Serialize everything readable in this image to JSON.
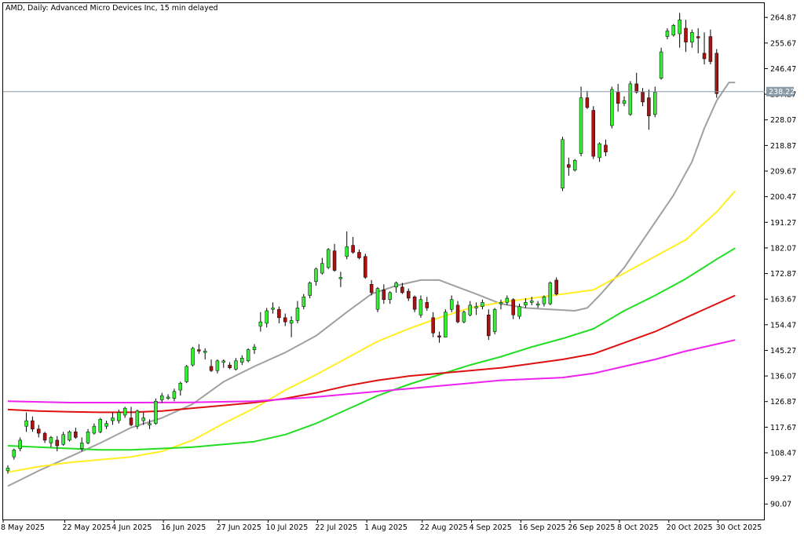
{
  "header": {
    "symbol_line": "AMD, Daily:  Advanced Micro Devices Inc, 15 min delayed"
  },
  "current_price": {
    "label": "238.22",
    "value": 238.22,
    "line_color": "#8a9aa6",
    "tag_color": "#8a9aa6"
  },
  "colors": {
    "bull_candle": "#33ee33",
    "bear_candle": "#aa1111",
    "wick": "#000000",
    "ma_grey": "#a0a0a0",
    "ma_yellow": "#ffee22",
    "ma_green": "#22dd22",
    "ma_red": "#dd1111",
    "ma_magenta": "#ee22ee"
  },
  "chart_data": {
    "type": "candlestick",
    "title": "AMD, Daily:  Advanced Micro Devices Inc, 15 min delayed",
    "ylim": [
      84.5,
      270
    ],
    "y_ticks": [
      "264.87",
      "255.67",
      "246.47",
      "237.27",
      "228.07",
      "218.87",
      "209.67",
      "200.47",
      "191.27",
      "182.07",
      "172.87",
      "163.67",
      "154.47",
      "145.27",
      "136.07",
      "126.87",
      "117.67",
      "108.47",
      "99.27",
      "90.07"
    ],
    "y_tick_values": [
      264.87,
      255.67,
      246.47,
      237.27,
      228.07,
      218.87,
      209.67,
      200.47,
      191.27,
      182.07,
      172.87,
      163.67,
      154.47,
      145.27,
      136.07,
      126.87,
      117.67,
      108.47,
      99.27,
      90.07
    ],
    "x_ticks": [
      {
        "label": "8 May 2025",
        "index": 0
      },
      {
        "label": "22 May 2025",
        "index": 10
      },
      {
        "label": "4 Jun 2025",
        "index": 18
      },
      {
        "label": "16 Jun 2025",
        "index": 26
      },
      {
        "label": "27 Jun 2025",
        "index": 35
      },
      {
        "label": "10 Jul 2025",
        "index": 43
      },
      {
        "label": "22 Jul 2025",
        "index": 51
      },
      {
        "label": "1 Aug 2025",
        "index": 59
      },
      {
        "label": "22 Aug 2025",
        "index": 68
      },
      {
        "label": "4 Sep 2025",
        "index": 76
      },
      {
        "label": "16 Sep 2025",
        "index": 84
      },
      {
        "label": "26 Sep 2025",
        "index": 92
      },
      {
        "label": "8 Oct 2025",
        "index": 100
      },
      {
        "label": "20 Oct 2025",
        "index": 108
      },
      {
        "label": "30 Oct 2025",
        "index": 116
      }
    ],
    "candles": [
      [
        102.0,
        104.0,
        101.0,
        103.0
      ],
      [
        107.0,
        110.0,
        106.0,
        109.5
      ],
      [
        110.0,
        114.0,
        109.0,
        113.0
      ],
      [
        118.0,
        123.0,
        116.0,
        120.0
      ],
      [
        120.0,
        121.5,
        116.0,
        117.0
      ],
      [
        117.0,
        118.5,
        114.0,
        115.5
      ],
      [
        115.5,
        116.0,
        112.0,
        113.0
      ],
      [
        112.0,
        114.5,
        110.5,
        114.0
      ],
      [
        113.0,
        114.5,
        109.0,
        111.0
      ],
      [
        111.5,
        116.0,
        111.0,
        115.0
      ],
      [
        113.0,
        116.5,
        112.5,
        116.0
      ],
      [
        116.0,
        117.5,
        113.5,
        114.0
      ],
      [
        110.0,
        114.0,
        109.0,
        112.0
      ],
      [
        112.0,
        117.0,
        111.5,
        116.0
      ],
      [
        115.5,
        119.0,
        115.0,
        118.0
      ],
      [
        116.0,
        121.0,
        115.5,
        120.5
      ],
      [
        118.0,
        120.0,
        117.0,
        119.0
      ],
      [
        120.0,
        123.0,
        118.5,
        121.0
      ],
      [
        120.0,
        124.0,
        119.0,
        123.0
      ],
      [
        122.0,
        125.0,
        121.0,
        124.5
      ],
      [
        121.0,
        125.0,
        118.0,
        118.5
      ],
      [
        118.0,
        124.0,
        117.0,
        123.5
      ],
      [
        120.0,
        123.0,
        118.5,
        121.0
      ],
      [
        118.5,
        120.5,
        117.0,
        119.0
      ],
      [
        119.0,
        128.0,
        118.5,
        127.0
      ],
      [
        127.5,
        130.0,
        126.5,
        129.0
      ],
      [
        128.0,
        129.5,
        127.5,
        128.5
      ],
      [
        128.0,
        131.5,
        127.0,
        130.5
      ],
      [
        131.0,
        134.0,
        129.0,
        133.5
      ],
      [
        134.0,
        140.0,
        133.5,
        139.5
      ],
      [
        140.0,
        146.5,
        139.5,
        146.0
      ],
      [
        145.5,
        147.5,
        144.0,
        145.0
      ],
      [
        144.5,
        146.0,
        142.0,
        145.0
      ],
      [
        139.5,
        142.0,
        137.5,
        138.0
      ],
      [
        138.0,
        142.0,
        137.0,
        141.5
      ],
      [
        141.0,
        142.0,
        139.0,
        141.5
      ],
      [
        140.0,
        141.0,
        138.5,
        139.0
      ],
      [
        138.5,
        142.5,
        138.0,
        141.5
      ],
      [
        141.0,
        143.5,
        140.0,
        142.5
      ],
      [
        141.5,
        146.0,
        141.0,
        145.5
      ],
      [
        145.5,
        147.5,
        144.0,
        146.5
      ],
      [
        154.0,
        159.0,
        152.0,
        155.5
      ],
      [
        155.0,
        160.5,
        153.5,
        159.5
      ],
      [
        160.0,
        162.5,
        158.5,
        160.5
      ],
      [
        160.0,
        161.0,
        155.0,
        157.0
      ],
      [
        157.0,
        158.5,
        154.0,
        155.5
      ],
      [
        155.0,
        157.5,
        150.0,
        156.0
      ],
      [
        156.0,
        163.0,
        155.0,
        160.5
      ],
      [
        161.0,
        165.5,
        160.0,
        164.5
      ],
      [
        165.0,
        170.0,
        164.0,
        169.5
      ],
      [
        170.0,
        175.0,
        168.5,
        174.5
      ],
      [
        173.0,
        178.5,
        172.5,
        176.5
      ],
      [
        175.0,
        182.0,
        174.5,
        181.5
      ],
      [
        181.0,
        183.5,
        173.5,
        174.0
      ],
      [
        171.0,
        173.5,
        168.0,
        171.5
      ],
      [
        179.0,
        188.0,
        178.0,
        182.5
      ],
      [
        183.0,
        186.0,
        180.0,
        180.5
      ],
      [
        180.5,
        181.5,
        178.0,
        178.5
      ],
      [
        179.0,
        180.0,
        171.0,
        171.5
      ],
      [
        169.0,
        170.5,
        165.0,
        166.0
      ],
      [
        160.0,
        168.0,
        159.0,
        167.5
      ],
      [
        167.0,
        169.0,
        162.0,
        163.5
      ],
      [
        163.5,
        166.5,
        162.0,
        166.0
      ],
      [
        168.0,
        170.0,
        166.0,
        169.5
      ],
      [
        168.0,
        169.5,
        165.5,
        166.0
      ],
      [
        166.5,
        167.5,
        163.0,
        164.0
      ],
      [
        164.5,
        165.0,
        159.0,
        160.0
      ],
      [
        158.0,
        165.0,
        157.0,
        163.5
      ],
      [
        162.5,
        164.5,
        159.5,
        160.5
      ],
      [
        157.0,
        159.0,
        150.0,
        151.5
      ],
      [
        150.5,
        152.0,
        148.0,
        150.0
      ],
      [
        150.0,
        160.0,
        150.0,
        159.0
      ],
      [
        160.0,
        165.0,
        159.0,
        163.5
      ],
      [
        161.5,
        163.0,
        155.0,
        155.5
      ],
      [
        155.5,
        159.5,
        155.0,
        159.0
      ],
      [
        158.0,
        163.0,
        157.5,
        161.5
      ],
      [
        160.5,
        162.5,
        158.0,
        161.0
      ],
      [
        161.0,
        163.5,
        160.0,
        162.5
      ],
      [
        158.0,
        160.0,
        149.0,
        150.5
      ],
      [
        152.0,
        160.5,
        151.0,
        160.0
      ],
      [
        162.0,
        163.5,
        160.0,
        162.5
      ],
      [
        162.5,
        165.0,
        161.5,
        164.0
      ],
      [
        163.5,
        164.0,
        156.5,
        158.0
      ],
      [
        157.5,
        162.0,
        156.5,
        161.0
      ],
      [
        161.5,
        164.0,
        160.5,
        162.5
      ],
      [
        162.5,
        164.5,
        161.5,
        163.0
      ],
      [
        161.5,
        163.0,
        160.5,
        162.0
      ],
      [
        162.0,
        165.0,
        161.0,
        164.5
      ],
      [
        162.0,
        170.0,
        161.5,
        169.5
      ],
      [
        170.5,
        171.5,
        165.0,
        165.5
      ],
      [
        203.5,
        222.0,
        202.5,
        221.0
      ],
      [
        212.0,
        214.5,
        208.0,
        211.0
      ],
      [
        210.0,
        214.0,
        209.5,
        213.5
      ],
      [
        216.0,
        240.0,
        215.0,
        236.0
      ],
      [
        236.0,
        238.5,
        232.0,
        232.5
      ],
      [
        231.5,
        233.0,
        214.0,
        215.0
      ],
      [
        214.5,
        220.0,
        213.0,
        219.5
      ],
      [
        219.0,
        221.0,
        215.0,
        216.5
      ],
      [
        226.0,
        240.0,
        225.0,
        239.0
      ],
      [
        238.0,
        241.0,
        231.0,
        234.0
      ],
      [
        234.0,
        236.5,
        233.0,
        235.0
      ],
      [
        230.0,
        242.0,
        229.5,
        241.0
      ],
      [
        241.0,
        245.0,
        237.5,
        238.0
      ],
      [
        238.0,
        239.5,
        233.0,
        234.5
      ],
      [
        236.0,
        239.0,
        224.5,
        229.5
      ],
      [
        230.0,
        240.0,
        229.0,
        238.0
      ],
      [
        243.0,
        254.0,
        242.5,
        252.5
      ],
      [
        258.0,
        261.0,
        257.0,
        260.0
      ],
      [
        258.5,
        262.5,
        258.0,
        262.0
      ],
      [
        259.0,
        266.5,
        254.0,
        264.0
      ],
      [
        261.0,
        264.0,
        252.5,
        256.0
      ],
      [
        256.0,
        260.5,
        254.0,
        259.5
      ],
      [
        258.0,
        261.0,
        252.0,
        257.5
      ],
      [
        252.0,
        259.5,
        248.0,
        250.0
      ],
      [
        258.0,
        260.5,
        248.0,
        249.0
      ],
      [
        252.0,
        253.5,
        236.0,
        237.5
      ]
    ],
    "moving_averages": [
      {
        "color_key": "ma_grey",
        "points": [
          [
            0,
            96.5
          ],
          [
            5,
            102
          ],
          [
            10,
            107
          ],
          [
            15,
            112
          ],
          [
            20,
            117.5
          ],
          [
            25,
            121
          ],
          [
            30,
            126
          ],
          [
            35,
            134
          ],
          [
            40,
            139.5
          ],
          [
            45,
            144.5
          ],
          [
            50,
            150.5
          ],
          [
            55,
            159
          ],
          [
            59,
            165.5
          ],
          [
            63,
            168.5
          ],
          [
            67,
            170.5
          ],
          [
            70,
            170.5
          ],
          [
            73,
            168
          ],
          [
            76,
            165.5
          ],
          [
            80,
            162
          ],
          [
            84,
            160.5
          ],
          [
            88,
            160
          ],
          [
            92,
            159.5
          ],
          [
            94,
            160.5
          ],
          [
            96,
            165
          ],
          [
            98,
            170
          ],
          [
            100,
            175
          ],
          [
            104,
            188
          ],
          [
            108,
            201
          ],
          [
            111,
            213
          ],
          [
            113,
            225
          ],
          [
            115,
            235
          ],
          [
            117,
            241.5
          ],
          [
            118,
            241.5
          ]
        ]
      },
      {
        "color_key": "ma_yellow",
        "points": [
          [
            0,
            101.5
          ],
          [
            5,
            103.5
          ],
          [
            10,
            105
          ],
          [
            15,
            106
          ],
          [
            20,
            107
          ],
          [
            25,
            109
          ],
          [
            30,
            113
          ],
          [
            35,
            119
          ],
          [
            40,
            124.5
          ],
          [
            45,
            131
          ],
          [
            50,
            136.5
          ],
          [
            55,
            142.5
          ],
          [
            60,
            148.5
          ],
          [
            65,
            153
          ],
          [
            70,
            157
          ],
          [
            75,
            160.5
          ],
          [
            80,
            162.5
          ],
          [
            85,
            164
          ],
          [
            90,
            165.5
          ],
          [
            95,
            167
          ],
          [
            100,
            173
          ],
          [
            105,
            179
          ],
          [
            110,
            185
          ],
          [
            115,
            195
          ],
          [
            118,
            202.5
          ]
        ]
      },
      {
        "color_key": "ma_green",
        "points": [
          [
            0,
            111
          ],
          [
            5,
            110.5
          ],
          [
            10,
            110
          ],
          [
            15,
            109.5
          ],
          [
            20,
            109.5
          ],
          [
            25,
            110
          ],
          [
            30,
            110.5
          ],
          [
            35,
            111.5
          ],
          [
            40,
            112.5
          ],
          [
            45,
            115
          ],
          [
            50,
            119
          ],
          [
            55,
            124
          ],
          [
            60,
            129
          ],
          [
            65,
            133
          ],
          [
            70,
            136.5
          ],
          [
            75,
            140
          ],
          [
            80,
            143
          ],
          [
            85,
            146.5
          ],
          [
            90,
            149.5
          ],
          [
            95,
            153
          ],
          [
            100,
            159.5
          ],
          [
            105,
            165
          ],
          [
            110,
            171
          ],
          [
            115,
            178
          ],
          [
            118,
            182
          ]
        ]
      },
      {
        "color_key": "ma_red",
        "points": [
          [
            0,
            124
          ],
          [
            5,
            123.5
          ],
          [
            10,
            123.2
          ],
          [
            15,
            123
          ],
          [
            20,
            123
          ],
          [
            25,
            123.5
          ],
          [
            30,
            124.5
          ],
          [
            35,
            125.5
          ],
          [
            40,
            126.5
          ],
          [
            45,
            128
          ],
          [
            50,
            130
          ],
          [
            55,
            132.5
          ],
          [
            60,
            134.5
          ],
          [
            65,
            136
          ],
          [
            70,
            137
          ],
          [
            75,
            138
          ],
          [
            80,
            139
          ],
          [
            85,
            140.5
          ],
          [
            90,
            142
          ],
          [
            95,
            144
          ],
          [
            100,
            148
          ],
          [
            105,
            152
          ],
          [
            110,
            157
          ],
          [
            115,
            162
          ],
          [
            118,
            165
          ]
        ]
      },
      {
        "color_key": "ma_magenta",
        "points": [
          [
            0,
            127
          ],
          [
            10,
            126.5
          ],
          [
            20,
            126.5
          ],
          [
            30,
            126.6
          ],
          [
            40,
            127
          ],
          [
            50,
            128.5
          ],
          [
            60,
            130.5
          ],
          [
            70,
            132.5
          ],
          [
            75,
            133.5
          ],
          [
            80,
            134.5
          ],
          [
            85,
            135
          ],
          [
            90,
            135.5
          ],
          [
            95,
            137
          ],
          [
            100,
            139.5
          ],
          [
            105,
            142
          ],
          [
            110,
            145
          ],
          [
            115,
            147.5
          ],
          [
            118,
            149
          ]
        ]
      }
    ]
  }
}
